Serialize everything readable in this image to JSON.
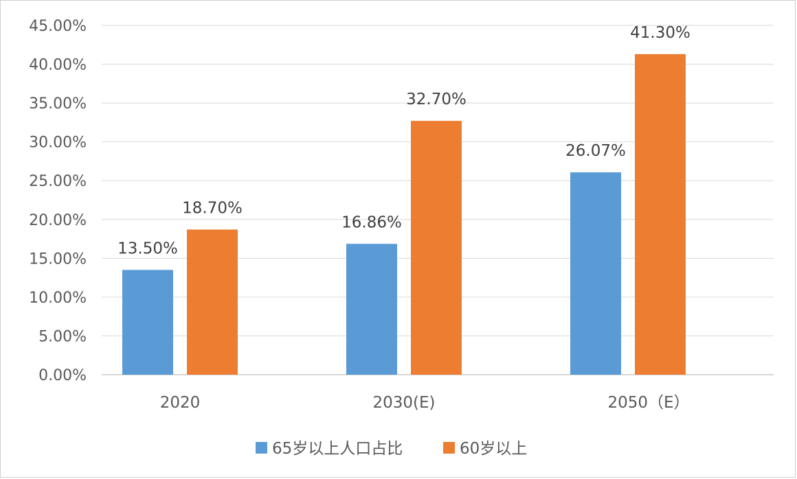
{
  "chart_data": {
    "type": "bar",
    "categories": [
      "2020",
      "2030(E)",
      "2050（E）"
    ],
    "series": [
      {
        "name": "65岁以上人口占比",
        "values": [
          13.5,
          16.86,
          26.07
        ],
        "color": "#5B9BD5",
        "labels": [
          "13.50%",
          "16.86%",
          "26.07%"
        ]
      },
      {
        "name": "60岁以上",
        "values": [
          18.7,
          32.7,
          41.3
        ],
        "color": "#ED7D31",
        "labels": [
          "18.70%",
          "32.70%",
          "41.30%"
        ]
      }
    ],
    "ylim": [
      0,
      45
    ],
    "yticks": [
      0,
      5,
      10,
      15,
      20,
      25,
      30,
      35,
      40,
      45
    ],
    "ytick_labels": [
      "0.00%",
      "5.00%",
      "10.00%",
      "15.00%",
      "20.00%",
      "25.00%",
      "30.00%",
      "35.00%",
      "40.00%",
      "45.00%"
    ],
    "grid": true,
    "legend_position": "bottom",
    "title": "",
    "xlabel": "",
    "ylabel": ""
  }
}
